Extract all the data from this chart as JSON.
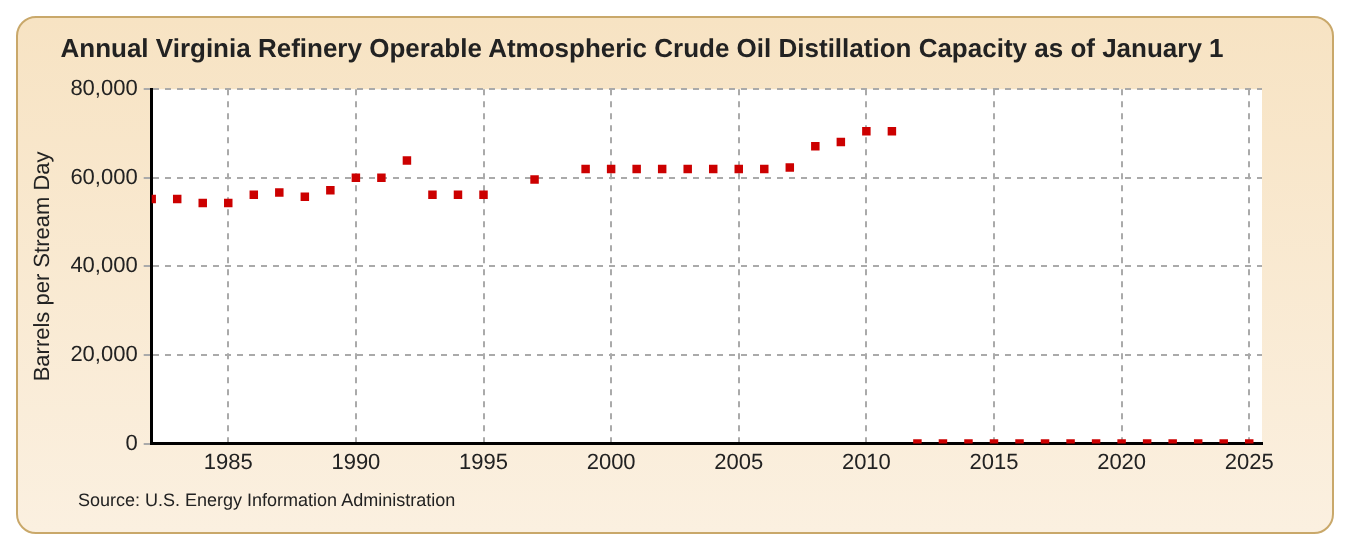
{
  "chart_data": {
    "type": "scatter",
    "title": "Annual Virginia Refinery Operable Atmospheric Crude Oil Distillation Capacity as of January 1",
    "ylabel": "Barrels per Stream Day",
    "annotations": [
      "Source: U.S. Energy Information Administration"
    ],
    "x": [
      1982,
      1983,
      1984,
      1985,
      1986,
      1987,
      1988,
      1989,
      1990,
      1991,
      1992,
      1993,
      1994,
      1995,
      1997,
      1999,
      2000,
      2001,
      2002,
      2003,
      2004,
      2005,
      2006,
      2007,
      2008,
      2009,
      2010,
      2011,
      2012,
      2013,
      2014,
      2015,
      2016,
      2017,
      2018,
      2019,
      2020,
      2021,
      2022,
      2023,
      2024,
      2025
    ],
    "series": [
      {
        "color": "#cc0000",
        "values": [
          55200,
          55200,
          54300,
          54300,
          56200,
          56700,
          55700,
          57200,
          60000,
          60000,
          63900,
          56200,
          56200,
          56200,
          59600,
          62000,
          62000,
          62000,
          62000,
          62000,
          62000,
          62000,
          62000,
          62300,
          67100,
          68100,
          70500,
          70500,
          0,
          0,
          0,
          0,
          0,
          0,
          0,
          0,
          0,
          0,
          0,
          0,
          0,
          0
        ]
      }
    ],
    "xlim": [
      1982,
      2025.5
    ],
    "xticks": [
      1985,
      1990,
      1995,
      2000,
      2005,
      2010,
      2015,
      2020,
      2025
    ],
    "ylim": [
      0,
      80000
    ],
    "yticks": [
      {
        "value": 0,
        "label": "0"
      },
      {
        "value": 20000,
        "label": "20,000"
      },
      {
        "value": 40000,
        "label": "40,000"
      },
      {
        "value": 60000,
        "label": "60,000"
      },
      {
        "value": 80000,
        "label": "80,000"
      }
    ],
    "grid": true,
    "legend": false,
    "marker": "square"
  }
}
